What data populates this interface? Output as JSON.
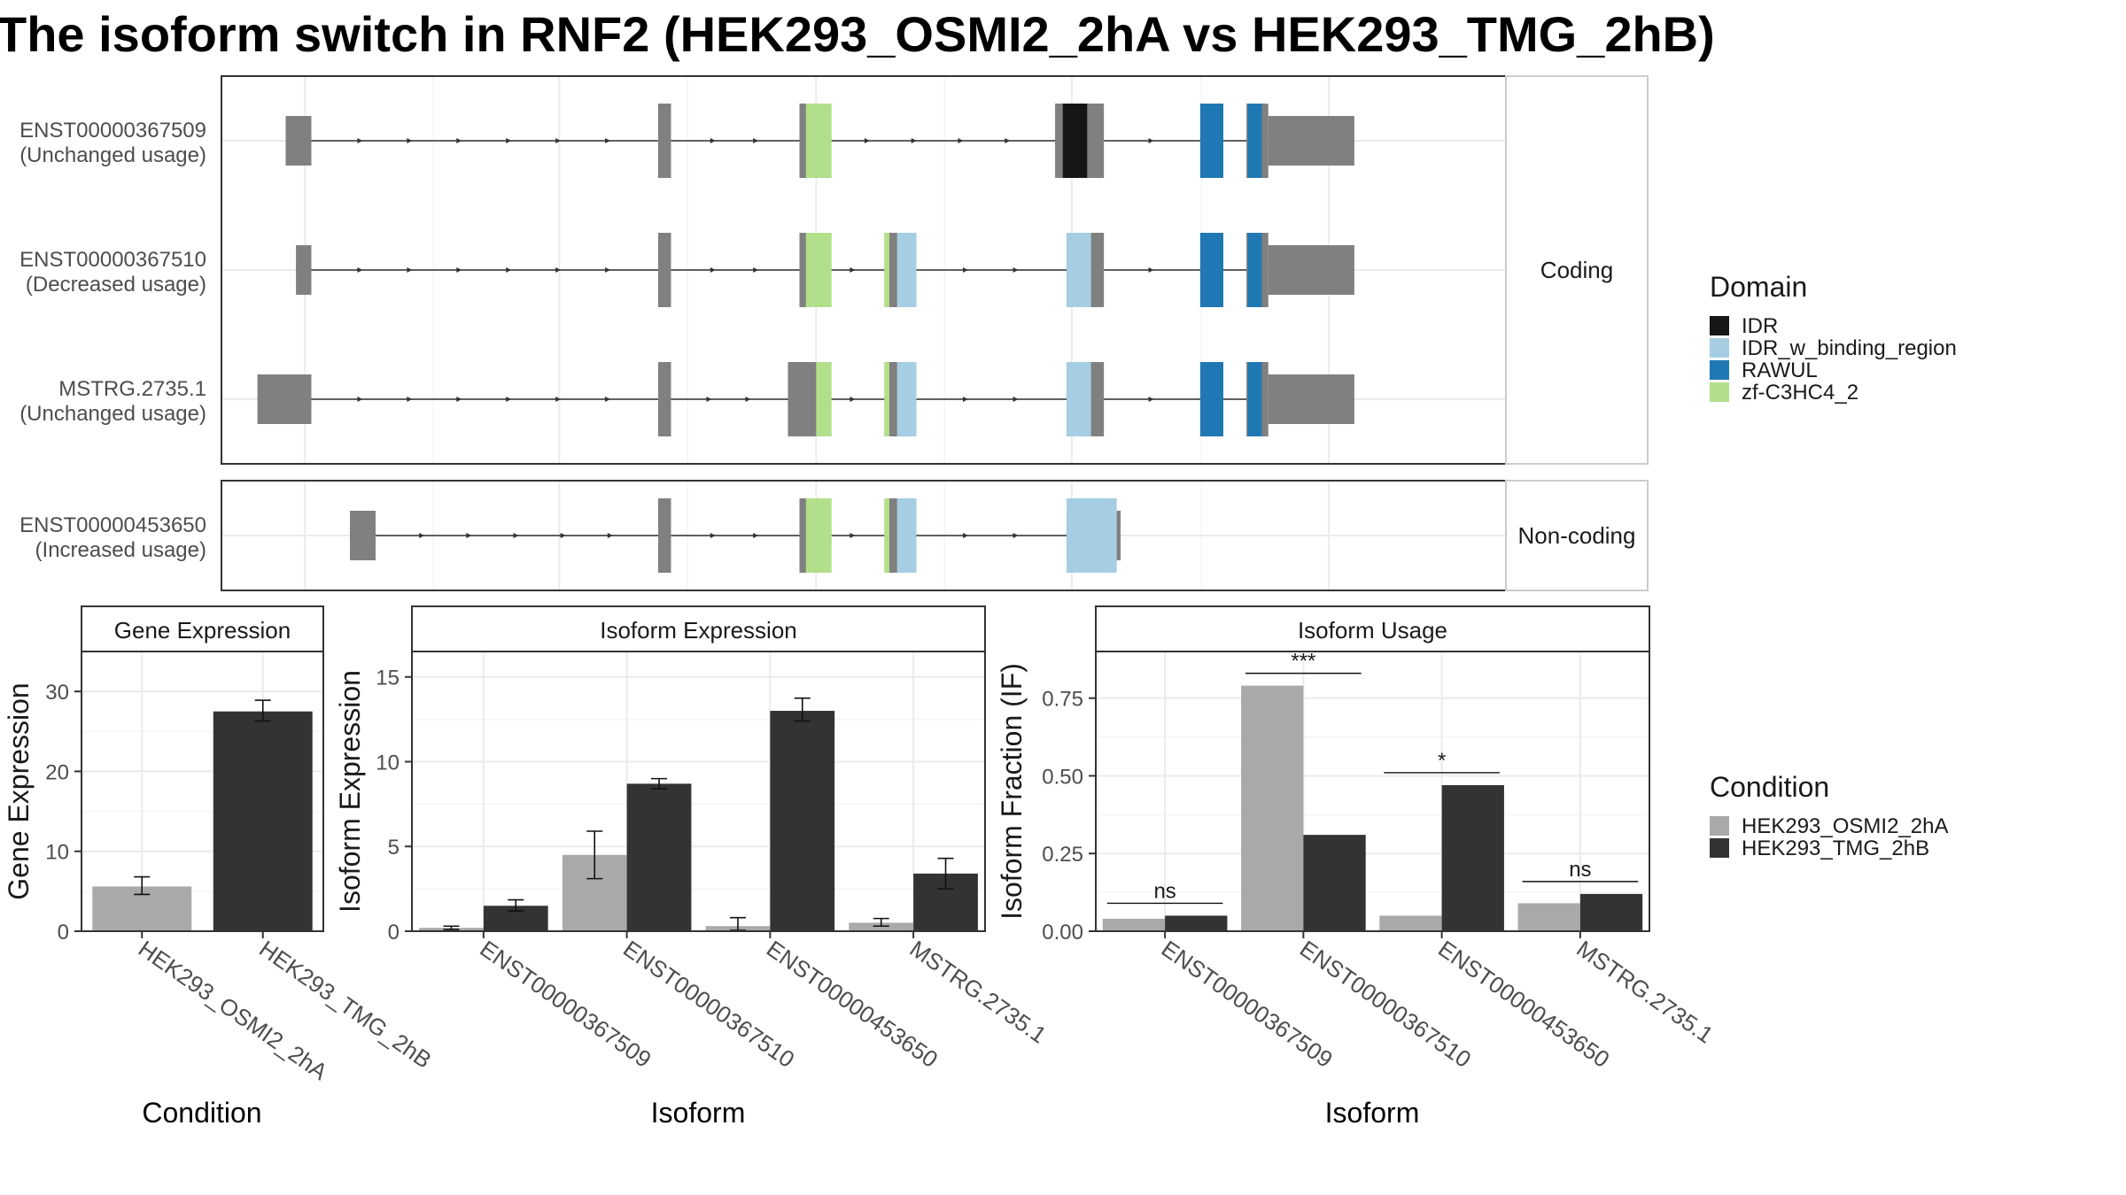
{
  "chart_data": [
    {
      "type": "gene-structure",
      "title": "The isoform switch in RNF2 (HEK293_OSMI2_2hA vs HEK293_TMG_2hB)",
      "facets": [
        {
          "label": "Coding",
          "transcripts": [
            {
              "name": "ENST00000367509",
              "usage": "(Unchanged usage)",
              "exons": [
                [
                  0.05,
                  0.07
                ],
                [
                  0.34,
                  0.35
                ],
                [
                  0.45,
                  0.467
                ],
                [
                  0.649,
                  0.687
                ],
                [
                  0.762,
                  0.78
                ],
                [
                  0.798,
                  0.815
                ],
                [
                  0.815,
                  0.882
                ]
              ],
              "domains": [
                {
                  "domain": "zf-C3HC4_2",
                  "range": [
                    0.455,
                    0.475
                  ]
                },
                {
                  "domain": "IDR",
                  "range": [
                    0.655,
                    0.674
                  ]
                },
                {
                  "domain": "RAWUL",
                  "range": [
                    0.762,
                    0.78
                  ]
                },
                {
                  "domain": "RAWUL",
                  "range": [
                    0.799,
                    0.81
                  ]
                }
              ]
            },
            {
              "name": "ENST00000367510",
              "usage": "(Decreased usage)",
              "exons": [
                [
                  0.058,
                  0.07
                ],
                [
                  0.34,
                  0.35
                ],
                [
                  0.45,
                  0.467
                ],
                [
                  0.517,
                  0.541
                ],
                [
                  0.658,
                  0.687
                ],
                [
                  0.762,
                  0.78
                ],
                [
                  0.798,
                  0.815
                ],
                [
                  0.815,
                  0.882
                ]
              ],
              "domains": [
                {
                  "domain": "zf-C3HC4_2",
                  "range": [
                    0.455,
                    0.475
                  ]
                },
                {
                  "domain": "zf-C3HC4_2",
                  "range": [
                    0.516,
                    0.52
                  ]
                },
                {
                  "domain": "IDR_w_binding_region",
                  "range": [
                    0.526,
                    0.541
                  ]
                },
                {
                  "domain": "IDR_w_binding_region",
                  "range": [
                    0.658,
                    0.677
                  ]
                },
                {
                  "domain": "RAWUL",
                  "range": [
                    0.762,
                    0.78
                  ]
                },
                {
                  "domain": "RAWUL",
                  "range": [
                    0.799,
                    0.81
                  ]
                }
              ]
            },
            {
              "name": "MSTRG.2735.1",
              "usage": "(Unchanged usage)",
              "exons": [
                [
                  0.028,
                  0.07
                ],
                [
                  0.34,
                  0.35
                ],
                [
                  0.441,
                  0.467
                ],
                [
                  0.517,
                  0.541
                ],
                [
                  0.658,
                  0.687
                ],
                [
                  0.762,
                  0.78
                ],
                [
                  0.798,
                  0.815
                ],
                [
                  0.815,
                  0.882
                ]
              ],
              "domains": [
                {
                  "domain": "zf-C3HC4_2",
                  "range": [
                    0.463,
                    0.475
                  ]
                },
                {
                  "domain": "zf-C3HC4_2",
                  "range": [
                    0.516,
                    0.52
                  ]
                },
                {
                  "domain": "IDR_w_binding_region",
                  "range": [
                    0.526,
                    0.541
                  ]
                },
                {
                  "domain": "IDR_w_binding_region",
                  "range": [
                    0.658,
                    0.677
                  ]
                },
                {
                  "domain": "RAWUL",
                  "range": [
                    0.762,
                    0.78
                  ]
                },
                {
                  "domain": "RAWUL",
                  "range": [
                    0.799,
                    0.81
                  ]
                }
              ]
            }
          ]
        },
        {
          "label": "Non-coding",
          "transcripts": [
            {
              "name": "ENST00000453650",
              "usage": "(Increased usage)",
              "exons": [
                [
                  0.1,
                  0.12
                ],
                [
                  0.34,
                  0.35
                ],
                [
                  0.45,
                  0.467
                ],
                [
                  0.517,
                  0.541
                ],
                [
                  0.658,
                  0.7
                ]
              ],
              "domains": [
                {
                  "domain": "zf-C3HC4_2",
                  "range": [
                    0.455,
                    0.475
                  ]
                },
                {
                  "domain": "zf-C3HC4_2",
                  "range": [
                    0.516,
                    0.52
                  ]
                },
                {
                  "domain": "IDR_w_binding_region",
                  "range": [
                    0.526,
                    0.541
                  ]
                },
                {
                  "domain": "IDR_w_binding_region",
                  "range": [
                    0.658,
                    0.697
                  ]
                }
              ]
            }
          ]
        }
      ],
      "legend": {
        "title": "Domain",
        "position": "right",
        "entries": [
          {
            "label": "IDR",
            "color": "#161616"
          },
          {
            "label": "IDR_w_binding_region",
            "color": "#a6cee3"
          },
          {
            "label": "RAWUL",
            "color": "#1f78b4"
          },
          {
            "label": "zf-C3HC4_2",
            "color": "#b2df8a"
          }
        ]
      },
      "exon_color": "#808080"
    },
    {
      "type": "bar",
      "title": "Gene Expression",
      "xlabel": "Condition",
      "ylabel": "Gene Expression",
      "ylim": [
        0,
        35
      ],
      "yticks": [
        0,
        10,
        20,
        30
      ],
      "grid": true,
      "categories": [
        "HEK293_OSMI2_2hA",
        "HEK293_TMG_2hB"
      ],
      "values": [
        5.6,
        27.5
      ],
      "errors": [
        [
          4.6,
          6.8
        ],
        [
          26.3,
          28.9
        ]
      ],
      "colors": [
        "#a9a9a9",
        "#333333"
      ]
    },
    {
      "type": "bar",
      "title": "Isoform Expression",
      "xlabel": "Isoform",
      "ylabel": "Isoform Expression",
      "ylim": [
        0,
        16.5
      ],
      "yticks": [
        0,
        5,
        10,
        15
      ],
      "grid": true,
      "categories": [
        "ENST00000367509",
        "ENST00000367510",
        "ENST00000453650",
        "MSTRG.2735.1"
      ],
      "series": [
        {
          "name": "HEK293_OSMI2_2hA",
          "values": [
            0.2,
            4.5,
            0.3,
            0.5
          ],
          "errors": [
            [
              0.1,
              0.3
            ],
            [
              3.1,
              5.9
            ],
            [
              0.05,
              0.8
            ],
            [
              0.3,
              0.75
            ]
          ]
        },
        {
          "name": "HEK293_TMG_2hB",
          "values": [
            1.5,
            8.7,
            13.0,
            3.4
          ],
          "errors": [
            [
              1.2,
              1.85
            ],
            [
              8.4,
              9.0
            ],
            [
              12.4,
              13.75
            ],
            [
              2.5,
              4.3
            ]
          ]
        }
      ]
    },
    {
      "type": "bar",
      "title": "Isoform Usage",
      "xlabel": "Isoform",
      "ylabel": "Isoform Fraction (IF)",
      "ylim": [
        0,
        0.9
      ],
      "yticks": [
        "0.00",
        "0.25",
        "0.50",
        "0.75"
      ],
      "grid": true,
      "categories": [
        "ENST00000367509",
        "ENST00000367510",
        "ENST00000453650",
        "MSTRG.2735.1"
      ],
      "series": [
        {
          "name": "HEK293_OSMI2_2hA",
          "values": [
            0.04,
            0.79,
            0.05,
            0.09
          ]
        },
        {
          "name": "HEK293_TMG_2hB",
          "values": [
            0.05,
            0.31,
            0.47,
            0.12
          ]
        }
      ],
      "annotations": [
        "ns",
        "***",
        "*",
        "ns"
      ]
    }
  ],
  "condition_legend": {
    "title": "Condition",
    "entries": [
      {
        "label": "HEK293_OSMI2_2hA",
        "color": "#a9a9a9"
      },
      {
        "label": "HEK293_TMG_2hB",
        "color": "#333333"
      }
    ]
  }
}
